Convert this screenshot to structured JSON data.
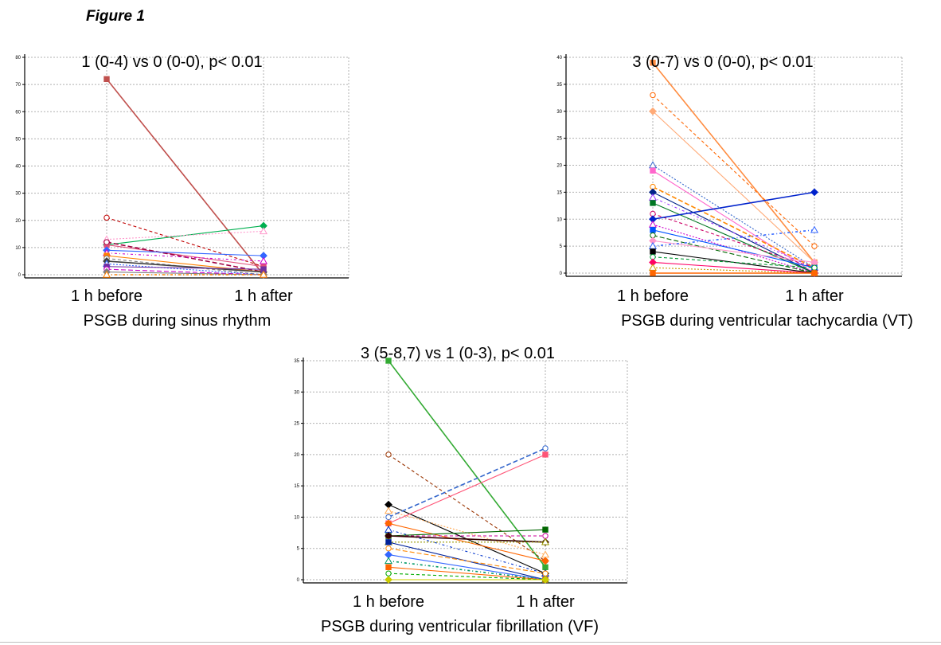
{
  "figure_label": "Figure 1",
  "chart_data": [
    {
      "type": "line",
      "title": "1 (0-4) vs 0 (0-0), p< 0.01",
      "xlabel": "PSGB during sinus rhythm",
      "categories": [
        "1 h before",
        "1 h after"
      ],
      "ylim": [
        0,
        80
      ],
      "yticks": [
        0,
        10,
        20,
        30,
        40,
        50,
        60,
        70,
        80
      ],
      "grid": true,
      "series": [
        {
          "values": [
            72,
            0
          ],
          "color": "#c0504d"
        },
        {
          "values": [
            21,
            3
          ],
          "color": "#c00000"
        },
        {
          "values": [
            11,
            18
          ],
          "color": "#00b050"
        },
        {
          "values": [
            13,
            16
          ],
          "color": "#ff99cc"
        },
        {
          "values": [
            11,
            3
          ],
          "color": "#e0507a"
        },
        {
          "values": [
            12,
            1
          ],
          "color": "#a00040"
        },
        {
          "values": [
            9,
            7
          ],
          "color": "#3366ff"
        },
        {
          "values": [
            8,
            5
          ],
          "color": "#cc00cc"
        },
        {
          "values": [
            7,
            1
          ],
          "color": "#ff8000"
        },
        {
          "values": [
            6,
            0
          ],
          "color": "#808080"
        },
        {
          "values": [
            5,
            1
          ],
          "color": "#404040"
        },
        {
          "values": [
            4,
            0
          ],
          "color": "#3366ff"
        },
        {
          "values": [
            3,
            2
          ],
          "color": "#7030a0"
        },
        {
          "values": [
            2,
            0
          ],
          "color": "#cc00cc"
        },
        {
          "values": [
            1,
            0
          ],
          "color": "#808080"
        },
        {
          "values": [
            0,
            0
          ],
          "color": "#ff8000"
        }
      ]
    },
    {
      "type": "line",
      "title": "3 (0-7) vs 0 (0-0), p< 0.01",
      "xlabel": "PSGB during ventricular tachycardia (VT)",
      "categories": [
        "1 h before",
        "1 h after"
      ],
      "ylim": [
        0,
        40
      ],
      "yticks": [
        0,
        5,
        10,
        15,
        20,
        25,
        30,
        35,
        40
      ],
      "grid": true,
      "series": [
        {
          "values": [
            39,
            2
          ],
          "color": "#ff8c40"
        },
        {
          "values": [
            33,
            5
          ],
          "color": "#ff6600"
        },
        {
          "values": [
            30,
            2
          ],
          "color": "#ffaa77"
        },
        {
          "values": [
            20,
            1
          ],
          "color": "#3366cc"
        },
        {
          "values": [
            19,
            0
          ],
          "color": "#ff66cc"
        },
        {
          "values": [
            16,
            1
          ],
          "color": "#ff8800"
        },
        {
          "values": [
            15,
            0
          ],
          "color": "#002288"
        },
        {
          "values": [
            14,
            1
          ],
          "color": "#9933ff"
        },
        {
          "values": [
            13,
            0
          ],
          "color": "#007722"
        },
        {
          "values": [
            11,
            1
          ],
          "color": "#cc0066"
        },
        {
          "values": [
            10,
            15
          ],
          "color": "#0022cc"
        },
        {
          "values": [
            9,
            0
          ],
          "color": "#cc00cc"
        },
        {
          "values": [
            8,
            1
          ],
          "color": "#0055ff"
        },
        {
          "values": [
            7,
            0
          ],
          "color": "#006600"
        },
        {
          "values": [
            6,
            2
          ],
          "color": "#ff99cc"
        },
        {
          "values": [
            5,
            8
          ],
          "color": "#3366ff"
        },
        {
          "values": [
            4,
            0
          ],
          "color": "#000000"
        },
        {
          "values": [
            3,
            1
          ],
          "color": "#009933"
        },
        {
          "values": [
            2,
            0
          ],
          "color": "#ff0066"
        },
        {
          "values": [
            1,
            0
          ],
          "color": "#cc9900"
        },
        {
          "values": [
            0,
            0
          ],
          "color": "#ff6600"
        }
      ]
    },
    {
      "type": "line",
      "title": "3 (5-8,7) vs 1 (0-3), p< 0.01",
      "xlabel": "PSGB during ventricular fibrillation (VF)",
      "categories": [
        "1 h before",
        "1 h after"
      ],
      "ylim": [
        0,
        35
      ],
      "yticks": [
        0,
        5,
        10,
        15,
        20,
        25,
        30,
        35
      ],
      "grid": true,
      "series": [
        {
          "values": [
            35,
            2
          ],
          "color": "#33aa33"
        },
        {
          "values": [
            20,
            3
          ],
          "color": "#993300"
        },
        {
          "values": [
            12,
            1
          ],
          "color": "#000000"
        },
        {
          "values": [
            11,
            4
          ],
          "color": "#ffaa55"
        },
        {
          "values": [
            9,
            20
          ],
          "color": "#ff5577"
        },
        {
          "values": [
            10,
            21
          ],
          "color": "#3366cc"
        },
        {
          "values": [
            9,
            3
          ],
          "color": "#ff6600"
        },
        {
          "values": [
            8,
            1
          ],
          "color": "#0033cc"
        },
        {
          "values": [
            7,
            8
          ],
          "color": "#006600"
        },
        {
          "values": [
            7,
            7
          ],
          "color": "#cc0099"
        },
        {
          "values": [
            7,
            6
          ],
          "color": "#330000"
        },
        {
          "values": [
            6,
            6
          ],
          "color": "#999900"
        },
        {
          "values": [
            6,
            0
          ],
          "color": "#002299"
        },
        {
          "values": [
            5,
            1
          ],
          "color": "#ff8800"
        },
        {
          "values": [
            4,
            0
          ],
          "color": "#3366ff"
        },
        {
          "values": [
            3,
            0
          ],
          "color": "#009966"
        },
        {
          "values": [
            2,
            0
          ],
          "color": "#ff6600"
        },
        {
          "values": [
            1,
            0
          ],
          "color": "#00aa00"
        },
        {
          "values": [
            0,
            0
          ],
          "color": "#cccc00"
        }
      ]
    }
  ]
}
